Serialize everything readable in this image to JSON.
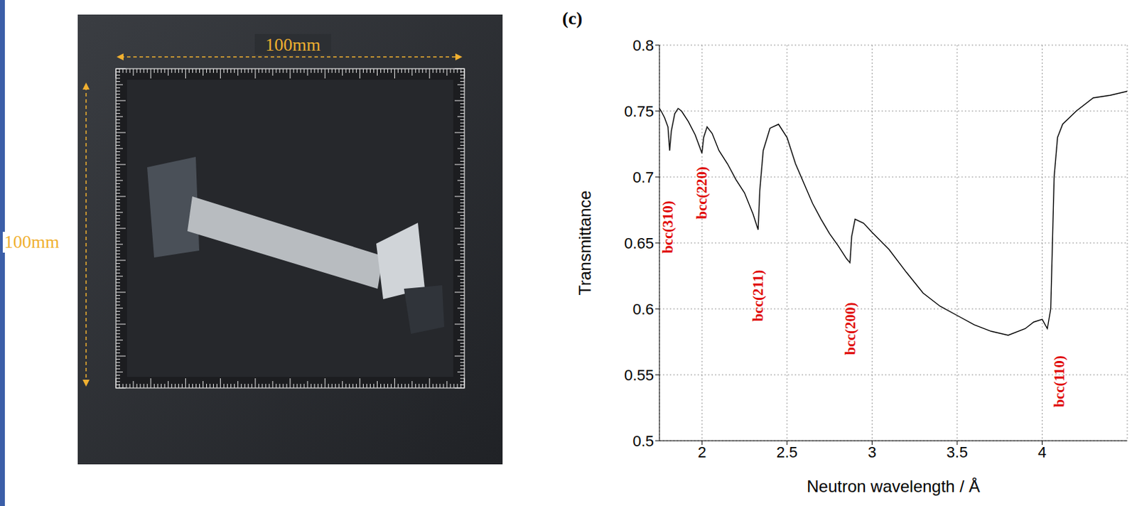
{
  "chart_data": {
    "type": "line",
    "panel_label": "(c)",
    "x_label": "Neutron wavelength / Å",
    "y_label": "Transmittance",
    "xlim": [
      1.75,
      4.5
    ],
    "xticks": [
      2,
      2.5,
      3,
      3.5,
      4
    ],
    "ylim": [
      0.5,
      0.8
    ],
    "yticks": [
      0.5,
      0.55,
      0.6,
      0.65,
      0.7,
      0.75,
      0.8
    ],
    "grid": true,
    "color": "#000000",
    "x": [
      1.75,
      1.76,
      1.78,
      1.8,
      1.81,
      1.82,
      1.84,
      1.86,
      1.88,
      1.92,
      1.96,
      2.0,
      2.01,
      2.03,
      2.06,
      2.1,
      2.15,
      2.2,
      2.25,
      2.3,
      2.33,
      2.34,
      2.36,
      2.4,
      2.45,
      2.5,
      2.55,
      2.6,
      2.65,
      2.7,
      2.75,
      2.8,
      2.85,
      2.87,
      2.88,
      2.9,
      2.95,
      3.0,
      3.1,
      3.2,
      3.3,
      3.4,
      3.5,
      3.6,
      3.7,
      3.8,
      3.9,
      3.95,
      4.0,
      4.03,
      4.05,
      4.06,
      4.07,
      4.09,
      4.12,
      4.2,
      4.3,
      4.4,
      4.5
    ],
    "values": [
      0.752,
      0.75,
      0.745,
      0.738,
      0.72,
      0.735,
      0.748,
      0.752,
      0.75,
      0.742,
      0.732,
      0.718,
      0.73,
      0.738,
      0.733,
      0.72,
      0.71,
      0.698,
      0.688,
      0.672,
      0.66,
      0.69,
      0.72,
      0.737,
      0.74,
      0.73,
      0.71,
      0.695,
      0.68,
      0.668,
      0.657,
      0.648,
      0.638,
      0.635,
      0.655,
      0.668,
      0.665,
      0.658,
      0.645,
      0.628,
      0.612,
      0.602,
      0.595,
      0.588,
      0.583,
      0.58,
      0.585,
      0.59,
      0.592,
      0.585,
      0.6,
      0.65,
      0.7,
      0.73,
      0.74,
      0.75,
      0.76,
      0.762,
      0.765
    ],
    "annotations": [
      {
        "text": "bcc(310)",
        "x": 1.8,
        "y": 0.662,
        "color": "#e00000"
      },
      {
        "text": "bcc(220)",
        "x": 2.0,
        "y": 0.688,
        "color": "#e00000"
      },
      {
        "text": "bcc(211)",
        "x": 2.33,
        "y": 0.61,
        "color": "#e00000"
      },
      {
        "text": "bcc(200)",
        "x": 2.87,
        "y": 0.585,
        "color": "#e00000"
      },
      {
        "text": "bcc(110)",
        "x": 4.1,
        "y": 0.545,
        "color": "#e00000"
      }
    ]
  },
  "photo_labels": {
    "width": "100mm",
    "height": "100mm"
  }
}
